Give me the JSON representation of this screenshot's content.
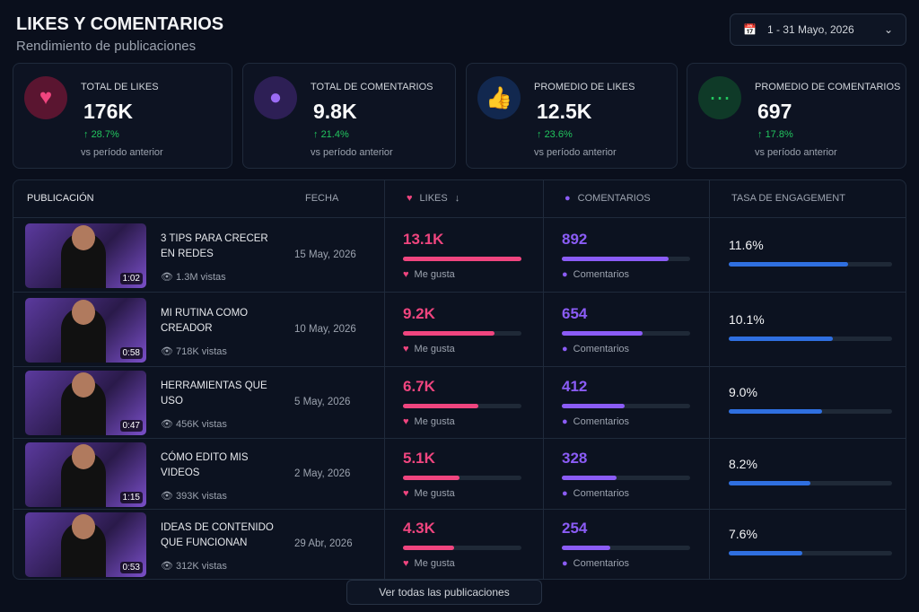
{
  "header": {
    "title": "LIKES Y COMENTARIOS",
    "subtitle": "Rendimiento de publicaciones",
    "date_range": "1 - 31 Mayo, 2026"
  },
  "cards": [
    {
      "label": "TOTAL DE LIKES",
      "value": "176K",
      "change": "28.7%",
      "sub": "vs período anterior",
      "icon": "heart-icon",
      "color": "#f0457f"
    },
    {
      "label": "TOTAL DE COMENTARIOS",
      "value": "9.8K",
      "change": "21.4%",
      "sub": "vs período anterior",
      "icon": "comment-icon",
      "color": "#9b6cf5"
    },
    {
      "label": "PROMEDIO DE LIKES",
      "value": "12.5K",
      "change": "23.6%",
      "sub": "vs período anterior",
      "icon": "thumbs-up-icon",
      "color": "#2f6fe0"
    },
    {
      "label": "PROMEDIO DE COMENTARIOS",
      "value": "697",
      "change": "17.8%",
      "sub": "vs período anterior",
      "icon": "chat-dots-icon",
      "color": "#22c55e"
    }
  ],
  "table": {
    "headers": {
      "post": "PUBLICACIÓN",
      "date": "FECHA",
      "likes": "LIKES",
      "comments": "COMENTARIOS",
      "engagement": "TASA DE ENGAGEMENT"
    },
    "likes_sub": "Me gusta",
    "comments_sub": "Comentarios",
    "rows": [
      {
        "title": "3 TIPS PARA CRECER EN REDES",
        "views": "1.3M vistas",
        "duration": "1:02",
        "date": "15 May, 2026",
        "likes": "13.1K",
        "likes_fill": 1.0,
        "comments": "892",
        "comments_fill": 0.83,
        "engagement": "11.6%",
        "engagement_fill": 0.73
      },
      {
        "title": "MI RUTINA COMO CREADOR",
        "views": "718K vistas",
        "duration": "0:58",
        "date": "10 May, 2026",
        "likes": "9.2K",
        "likes_fill": 0.77,
        "comments": "654",
        "comments_fill": 0.63,
        "engagement": "10.1%",
        "engagement_fill": 0.64
      },
      {
        "title": "HERRAMIENTAS QUE USO",
        "views": "456K vistas",
        "duration": "0:47",
        "date": "5 May, 2026",
        "likes": "6.7K",
        "likes_fill": 0.64,
        "comments": "412",
        "comments_fill": 0.49,
        "engagement": "9.0%",
        "engagement_fill": 0.57
      },
      {
        "title": "CÓMO EDITO MIS VIDEOS",
        "views": "393K vistas",
        "duration": "1:15",
        "date": "2 May, 2026",
        "likes": "5.1K",
        "likes_fill": 0.48,
        "comments": "328",
        "comments_fill": 0.43,
        "engagement": "8.2%",
        "engagement_fill": 0.5
      },
      {
        "title": "IDEAS DE CONTENIDO QUE FUNCIONAN",
        "views": "312K vistas",
        "duration": "0:53",
        "date": "29 Abr, 2026",
        "likes": "4.3K",
        "likes_fill": 0.43,
        "comments": "254",
        "comments_fill": 0.38,
        "engagement": "7.6%",
        "engagement_fill": 0.45
      }
    ]
  },
  "footer": {
    "view_all": "Ver todas las publicaciones"
  },
  "colors": {
    "likes": "#f0457f",
    "comments": "#8b5cf6",
    "engagement": "#2f6fe0",
    "positive": "#22c55e"
  }
}
